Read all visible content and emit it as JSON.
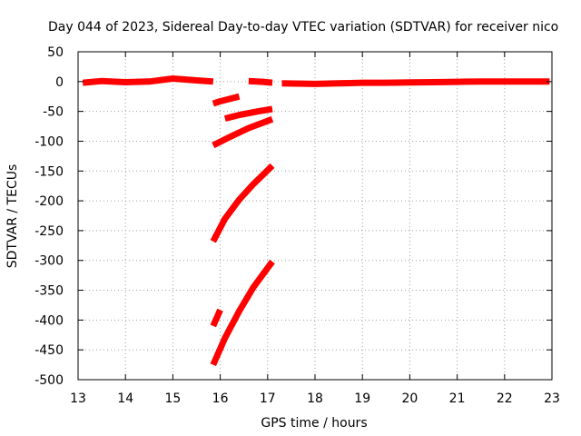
{
  "chart_data": {
    "type": "scatter",
    "title": "Day 044 of 2023, Sidereal Day-to-day VTEC variation (SDTVAR) for receiver nico",
    "xlabel": "GPS time / hours",
    "ylabel": "SDTVAR / TECUs",
    "xlim": [
      13,
      23
    ],
    "ylim": [
      -500,
      50
    ],
    "xticks": [
      13,
      14,
      15,
      16,
      17,
      18,
      19,
      20,
      21,
      22,
      23
    ],
    "yticks": [
      50,
      0,
      -50,
      -100,
      -150,
      -200,
      -250,
      -300,
      -350,
      -400,
      -450,
      -500
    ],
    "grid": true,
    "legend": "none",
    "series": [
      {
        "color": "#ff0000",
        "segments": [
          [
            [
              13.1,
              -2
            ],
            [
              13.5,
              1
            ],
            [
              14.0,
              -1
            ],
            [
              14.5,
              0
            ],
            [
              15.0,
              5
            ],
            [
              15.5,
              2
            ],
            [
              15.85,
              0
            ]
          ],
          [
            [
              15.85,
              -37
            ],
            [
              16.0,
              -33
            ],
            [
              16.2,
              -29
            ],
            [
              16.4,
              -25
            ]
          ],
          [
            [
              16.1,
              -62
            ],
            [
              16.4,
              -56
            ],
            [
              16.8,
              -50
            ],
            [
              17.1,
              -46
            ]
          ],
          [
            [
              15.85,
              -107
            ],
            [
              16.2,
              -93
            ],
            [
              16.6,
              -78
            ],
            [
              17.1,
              -63
            ]
          ],
          [
            [
              15.85,
              -268
            ],
            [
              16.1,
              -230
            ],
            [
              16.4,
              -198
            ],
            [
              16.7,
              -172
            ],
            [
              17.1,
              -141
            ]
          ],
          [
            [
              15.85,
              -410
            ],
            [
              16.0,
              -383
            ]
          ],
          [
            [
              15.85,
              -475
            ],
            [
              16.1,
              -430
            ],
            [
              16.4,
              -385
            ],
            [
              16.7,
              -345
            ],
            [
              17.1,
              -302
            ]
          ],
          [
            [
              16.6,
              1
            ],
            [
              16.9,
              -0.5
            ],
            [
              17.1,
              -2
            ]
          ],
          [
            [
              17.3,
              -3
            ],
            [
              18.0,
              -4
            ],
            [
              18.5,
              -3
            ],
            [
              19.0,
              -2
            ],
            [
              19.5,
              -2
            ],
            [
              20.0,
              -1.5
            ],
            [
              20.5,
              -1
            ],
            [
              21.0,
              -0.5
            ],
            [
              21.5,
              0
            ],
            [
              22.0,
              0
            ],
            [
              22.5,
              0
            ],
            [
              22.95,
              0
            ]
          ]
        ]
      }
    ]
  }
}
